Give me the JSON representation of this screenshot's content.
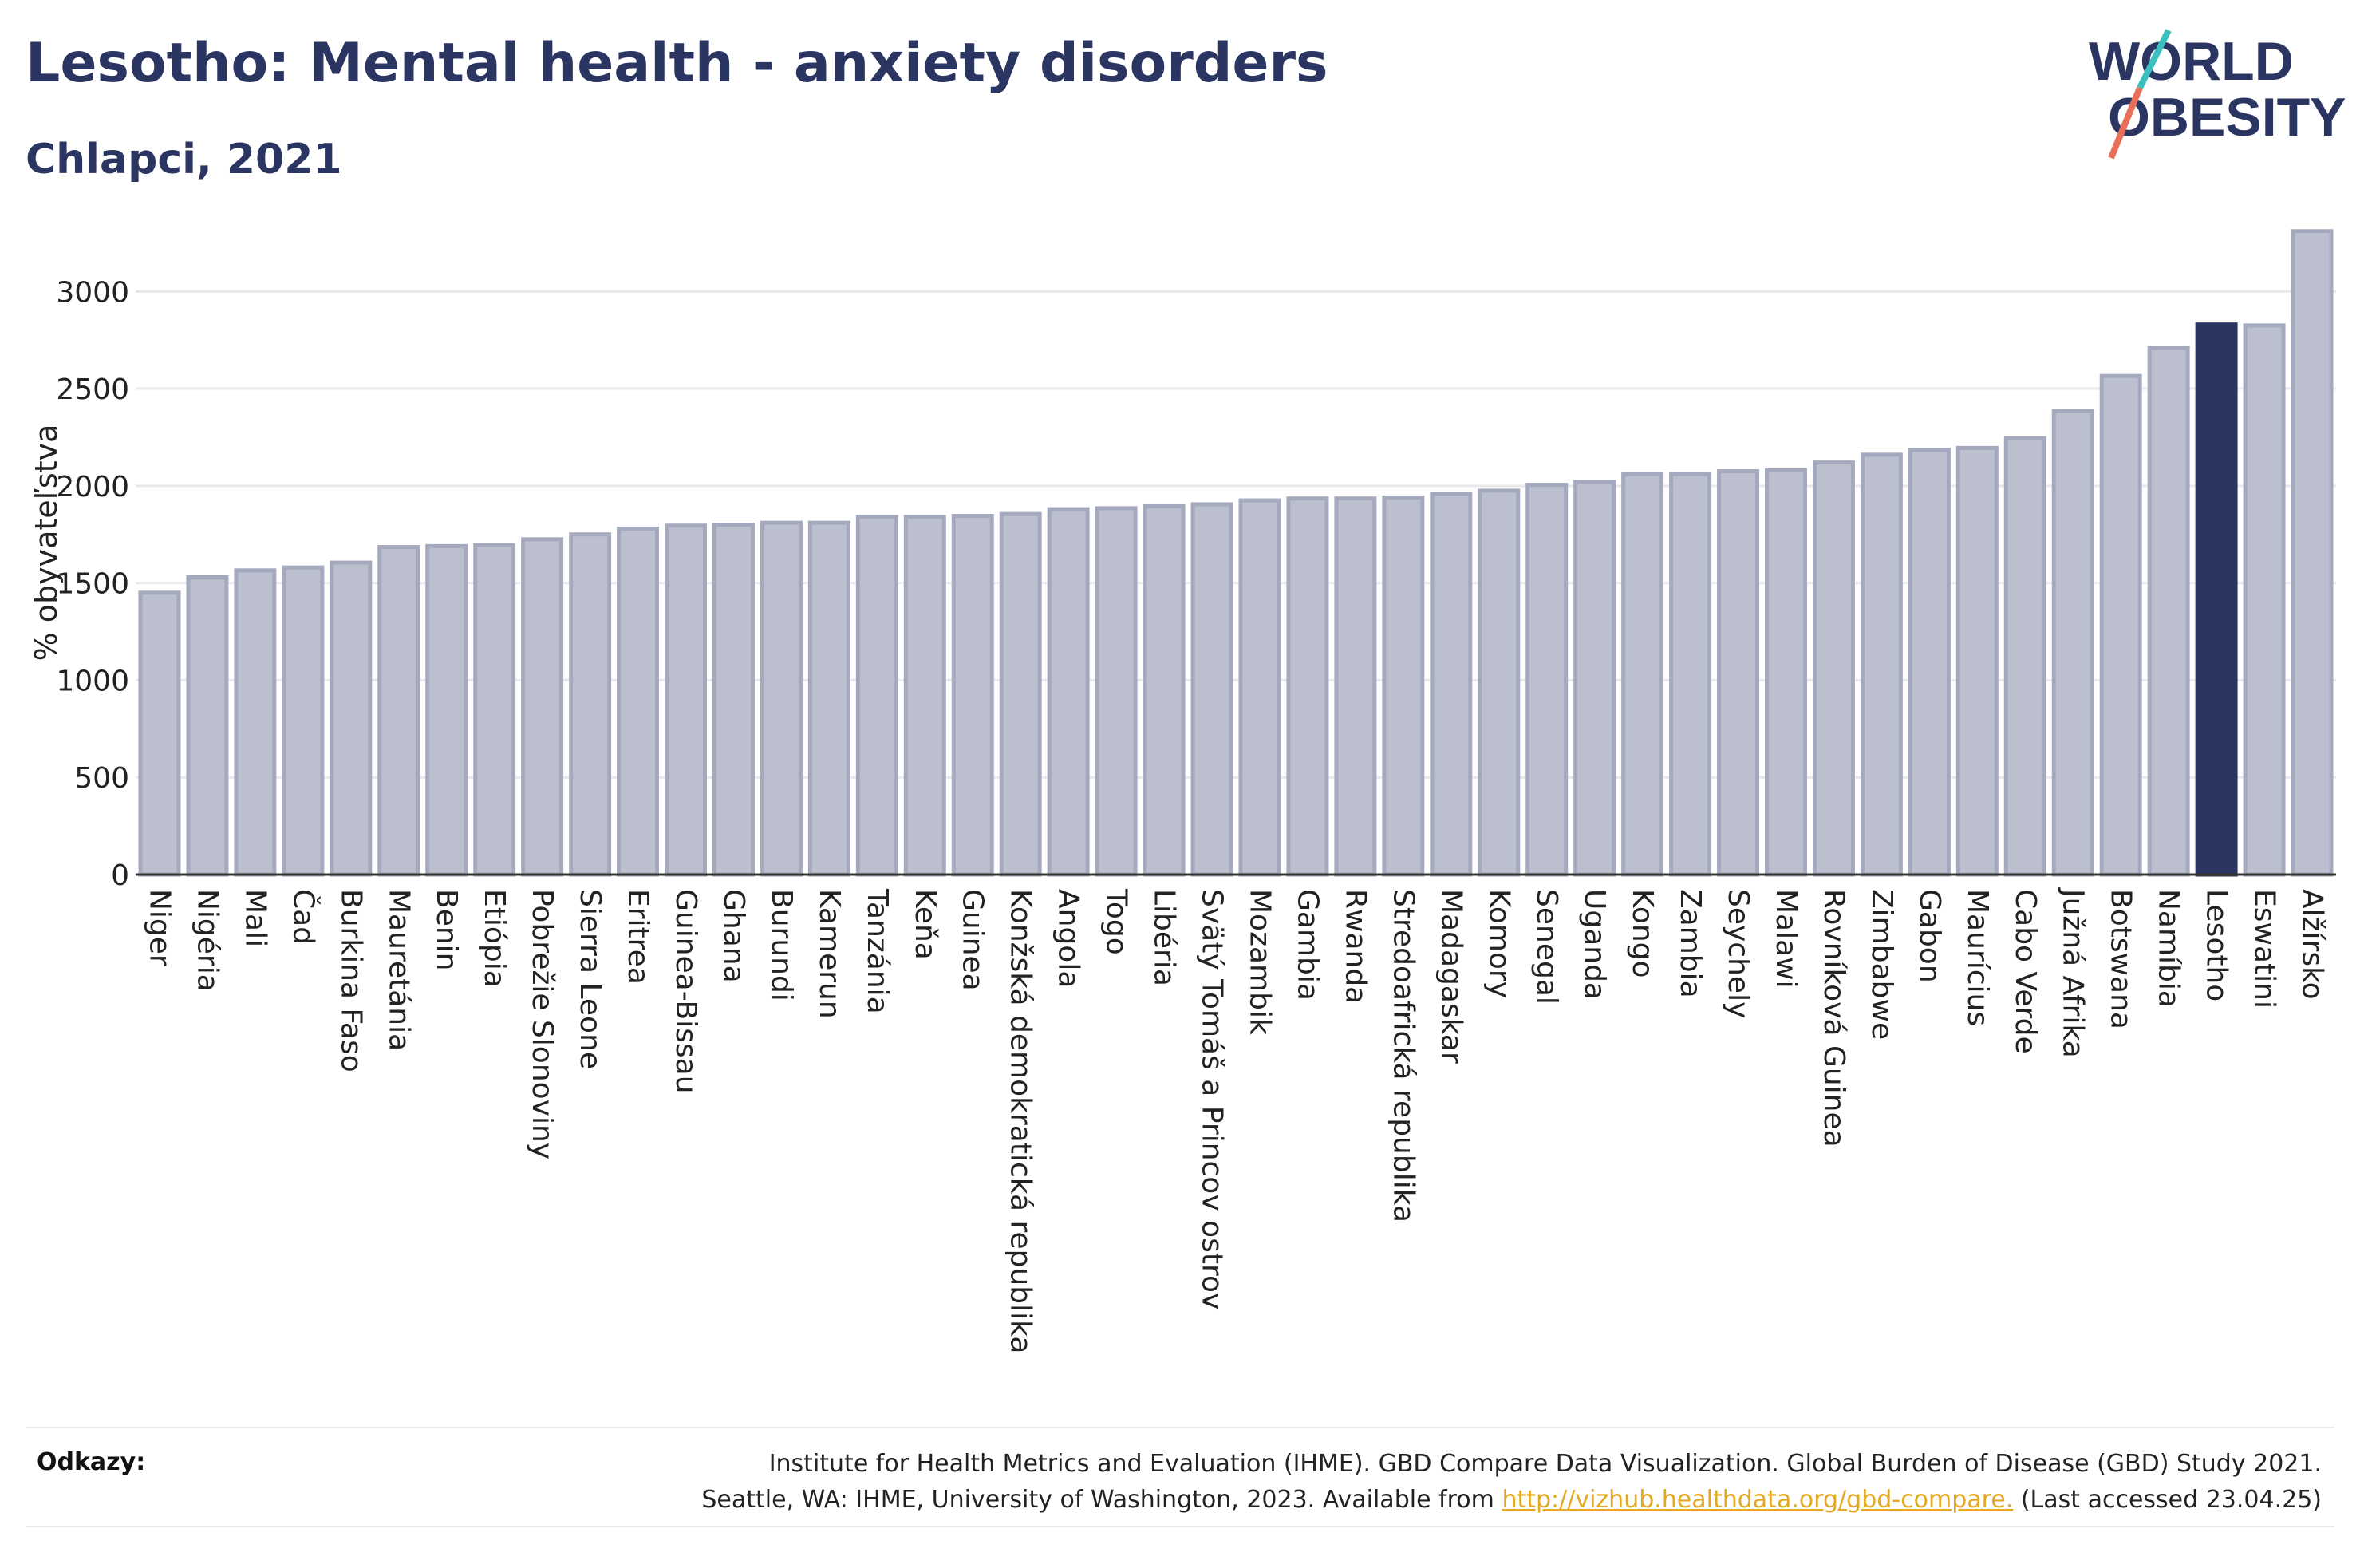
{
  "header": {
    "title": "Lesotho: Mental health - anxiety disorders",
    "subtitle": "Chlapci, 2021"
  },
  "logo": {
    "line1": "WORLD",
    "line2": "OBESITY"
  },
  "colors": {
    "bar": "#bcc0ce",
    "bar_border": "#a4a9bd",
    "highlight": "#2b3561",
    "grid": "#e9e9ec",
    "text": "#2b3561"
  },
  "chart_data": {
    "type": "bar",
    "title": "Lesotho: Mental health - anxiety disorders",
    "subtitle": "Chlapci, 2021",
    "ylabel": "% obyvateľstva",
    "ylim": [
      0,
      3350
    ],
    "yticks": [
      0,
      500,
      1000,
      1500,
      2000,
      2500,
      3000
    ],
    "grid": true,
    "highlight": "Lesotho",
    "categories": [
      "Niger",
      "Nigéria",
      "Mali",
      "Čad",
      "Burkina Faso",
      "Mauretánia",
      "Benin",
      "Etiópia",
      "Pobrežie Slonoviny",
      "Sierra Leone",
      "Eritrea",
      "Guinea-Bissau",
      "Ghana",
      "Burundi",
      "Kamerun",
      "Tanzánia",
      "Keňa",
      "Guinea",
      "Konžská demokratická republika",
      "Angola",
      "Togo",
      "Libéria",
      "Svätý Tomáš a Princov ostrov",
      "Mozambik",
      "Gambia",
      "Rwanda",
      "Stredoafrická republika",
      "Madagaskar",
      "Komory",
      "Senegal",
      "Uganda",
      "Kongo",
      "Zambia",
      "Seychely",
      "Malawi",
      "Rovníková Guinea",
      "Zimbabwe",
      "Gabon",
      "Maurícius",
      "Cabo Verde",
      "Južná Afrika",
      "Botswana",
      "Namíbia",
      "Lesotho",
      "Eswatini",
      "Alžírsko"
    ],
    "values": [
      1450,
      1530,
      1565,
      1580,
      1605,
      1685,
      1690,
      1695,
      1725,
      1750,
      1780,
      1795,
      1800,
      1810,
      1810,
      1840,
      1840,
      1845,
      1855,
      1880,
      1885,
      1895,
      1905,
      1925,
      1935,
      1935,
      1940,
      1960,
      1975,
      2005,
      2020,
      2060,
      2060,
      2075,
      2080,
      2120,
      2160,
      2185,
      2195,
      2245,
      2385,
      2565,
      2710,
      2830,
      2825,
      3310
    ]
  },
  "references": {
    "label": "Odkazy:",
    "line1": "Institute for Health Metrics and Evaluation (IHME). GBD Compare Data Visualization. Global Burden of Disease (GBD) Study 2021.",
    "line2_pre": "Seattle, WA: IHME, University of Washington, 2023. Available from",
    "link": "http://vizhub.healthdata.org/gbd-compare.",
    "line2_post": "(Last accessed 23.04.25)"
  }
}
